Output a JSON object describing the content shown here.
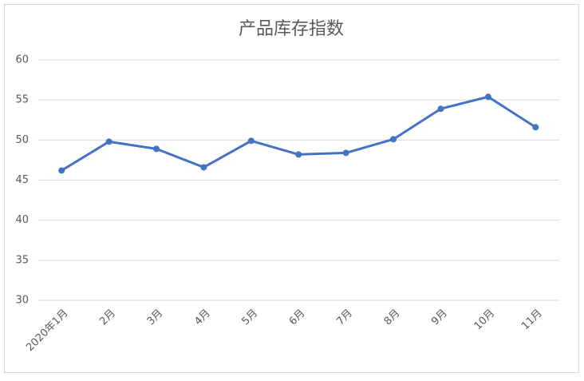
{
  "chart_data": {
    "type": "line",
    "title": "产品库存指数",
    "categories": [
      "2020年1月",
      "2月",
      "3月",
      "4月",
      "5月",
      "6月",
      "7月",
      "8月",
      "9月",
      "10月",
      "11月"
    ],
    "values": [
      46.2,
      49.8,
      48.9,
      46.6,
      49.9,
      48.2,
      48.4,
      50.1,
      53.9,
      55.4,
      51.6
    ],
    "color": "#4472c4",
    "ylim": [
      30,
      60
    ],
    "yticks": [
      30,
      35,
      40,
      45,
      50,
      55,
      60
    ],
    "grid": true
  }
}
